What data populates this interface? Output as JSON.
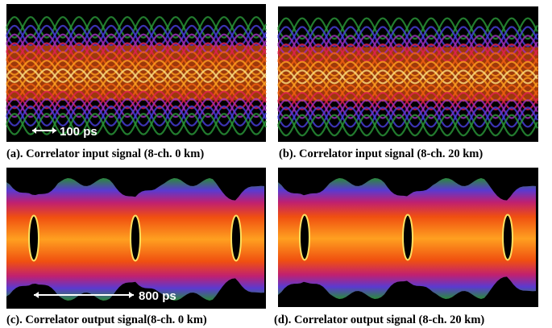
{
  "figure": {
    "panels": [
      {
        "caption": "(a). Correlator input signal (8-ch. 0 km)",
        "scale_label": "100 ps"
      },
      {
        "caption": "(b). Correlator input signal (8-ch. 20 km)"
      },
      {
        "caption": "(c). Correlator output signal(8-ch. 0 km)",
        "scale_label": "800 ps"
      },
      {
        "caption": "(d). Correlator output signal (8-ch. 20 km)"
      }
    ]
  }
}
